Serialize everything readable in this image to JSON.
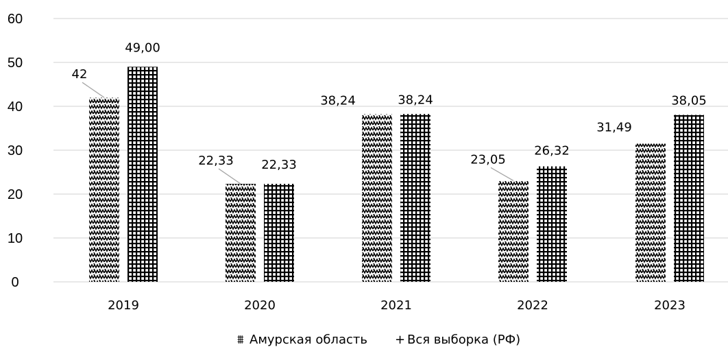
{
  "chart_data": {
    "type": "bar",
    "categories": [
      "2019",
      "2020",
      "2021",
      "2022",
      "2023"
    ],
    "series": [
      {
        "name": "Амурская область",
        "values": [
          42,
          22.33,
          38.24,
          23.05,
          31.49
        ],
        "labels": [
          "42",
          "22,33",
          "38,24",
          "23,05",
          "31,49"
        ],
        "pattern": "zigzag"
      },
      {
        "name": "Вся выборка (РФ)",
        "values": [
          49.0,
          22.33,
          38.24,
          26.32,
          38.05
        ],
        "labels": [
          "49,00",
          "22,33",
          "38,24",
          "26,32",
          "38,05"
        ],
        "pattern": "grid"
      }
    ],
    "yticks": [
      "0",
      "10",
      "20",
      "30",
      "40",
      "50",
      "60"
    ],
    "ylim": [
      0,
      60
    ],
    "grid": true,
    "legend_position": "bottom",
    "legend_symbols": [
      "⩩",
      "+"
    ],
    "colors": {
      "bars": "#000000",
      "grid": "#d9d9d9",
      "background": "#ffffff"
    }
  }
}
